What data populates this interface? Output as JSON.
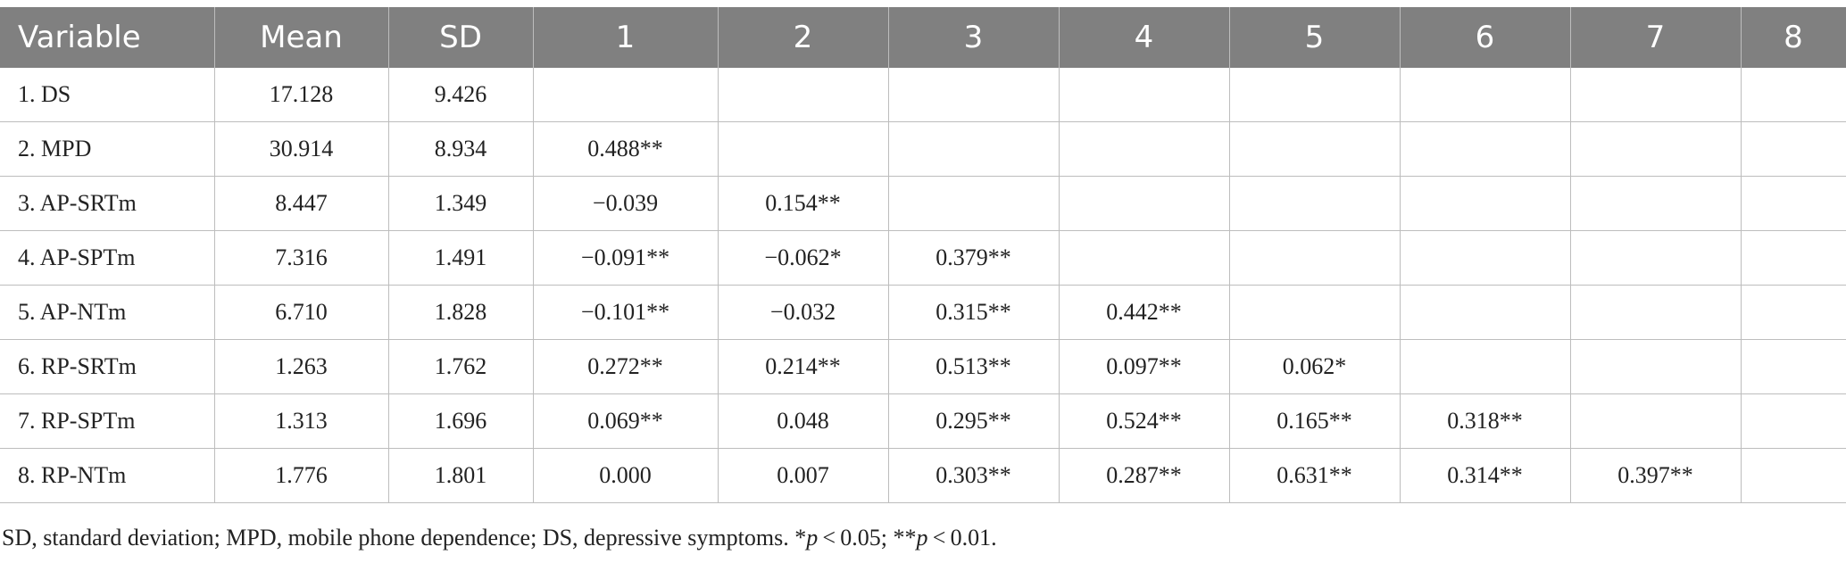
{
  "table": {
    "headers": [
      "Variable",
      "Mean",
      "SD",
      "1",
      "2",
      "3",
      "4",
      "5",
      "6",
      "7",
      "8"
    ],
    "rows": [
      [
        "1. DS",
        "17.128",
        "9.426",
        "",
        "",
        "",
        "",
        "",
        "",
        "",
        ""
      ],
      [
        "2. MPD",
        "30.914",
        "8.934",
        "0.488**",
        "",
        "",
        "",
        "",
        "",
        "",
        ""
      ],
      [
        "3. AP-SRTm",
        "8.447",
        "1.349",
        "−0.039",
        "0.154**",
        "",
        "",
        "",
        "",
        "",
        ""
      ],
      [
        "4. AP-SPTm",
        "7.316",
        "1.491",
        "−0.091**",
        "−0.062*",
        "0.379**",
        "",
        "",
        "",
        "",
        ""
      ],
      [
        "5. AP-NTm",
        "6.710",
        "1.828",
        "−0.101**",
        "−0.032",
        "0.315**",
        "0.442**",
        "",
        "",
        "",
        ""
      ],
      [
        "6. RP-SRTm",
        "1.263",
        "1.762",
        "0.272**",
        "0.214**",
        "0.513**",
        "0.097**",
        "0.062*",
        "",
        "",
        ""
      ],
      [
        "7. RP-SPTm",
        "1.313",
        "1.696",
        "0.069**",
        "0.048",
        "0.295**",
        "0.524**",
        "0.165**",
        "0.318**",
        "",
        ""
      ],
      [
        "8. RP-NTm",
        "1.776",
        "1.801",
        "0.000",
        "0.007",
        "0.303**",
        "0.287**",
        "0.631**",
        "0.314**",
        "0.397**",
        ""
      ]
    ]
  },
  "note": {
    "prefix": "SD, standard deviation; MPD, mobile phone dependence; DS, depressive symptoms. *",
    "p1": "p",
    "mid": " < 0.05; **",
    "p2": "p",
    "suffix": " < 0.01."
  }
}
